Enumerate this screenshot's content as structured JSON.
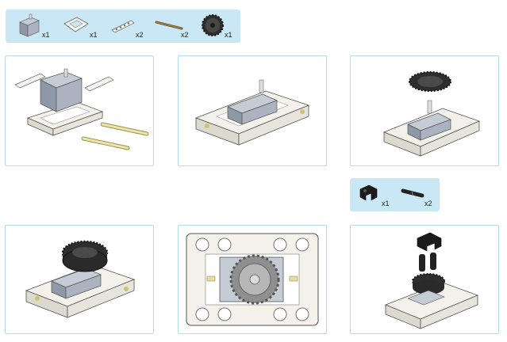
{
  "parts_top": {
    "items": [
      {
        "icon": "servo-motor-icon",
        "qty": "x1"
      },
      {
        "icon": "square-frame-icon",
        "qty": "x1"
      },
      {
        "icon": "beam-icon",
        "qty": "x2"
      },
      {
        "icon": "axle-icon",
        "qty": "x2"
      },
      {
        "icon": "gear-icon",
        "qty": "x1"
      }
    ]
  },
  "parts_mid": {
    "items": [
      {
        "icon": "connector-icon",
        "qty": "x1"
      },
      {
        "icon": "pin-icon",
        "qty": "x2"
      }
    ]
  },
  "colors": {
    "panel": "#c9e7f4",
    "border": "#b3dbec",
    "frame": "#f3f1ea",
    "servo": "#9ba8b8",
    "gear": "#3a3a3a",
    "axle": "#e4dca0"
  },
  "steps": [
    {
      "name": "step-1"
    },
    {
      "name": "step-2"
    },
    {
      "name": "step-3"
    },
    {
      "name": "step-4"
    },
    {
      "name": "step-5"
    },
    {
      "name": "step-6"
    }
  ]
}
